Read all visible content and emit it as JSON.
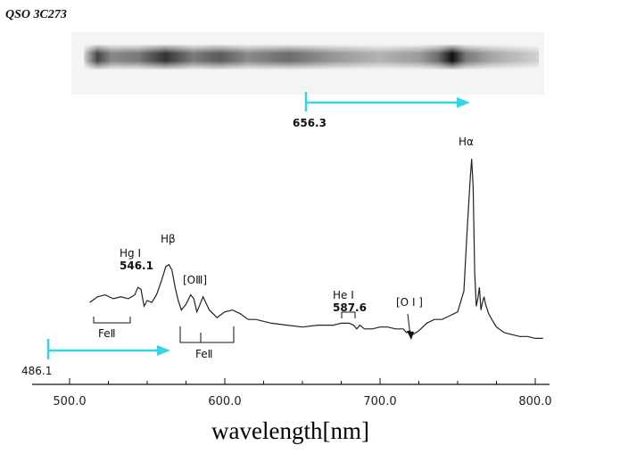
{
  "chart_data": {
    "type": "line",
    "title": "QSO 3C273",
    "xlabel": "wavelength[nm]",
    "ylabel": "",
    "xlim": [
      485,
      812
    ],
    "xticks": [
      "500.0",
      "600.0",
      "700.0",
      "800.0"
    ],
    "x_tick_values": [
      500,
      600,
      700,
      800
    ],
    "ylim": [
      0,
      1
    ],
    "grid": false,
    "series": [
      {
        "x": [
          513,
          518,
          523,
          528,
          533,
          538,
          542,
          544,
          546,
          548,
          550,
          553,
          556,
          559,
          562,
          564,
          566,
          568,
          570,
          572,
          575,
          578,
          580,
          582,
          584,
          586,
          590,
          595,
          600,
          605,
          610,
          615,
          620,
          630,
          640,
          650,
          660,
          670,
          675,
          680,
          683,
          685,
          687,
          690,
          695,
          700,
          705,
          710,
          715,
          717,
          719,
          721,
          725,
          730,
          735,
          740,
          745,
          750,
          754,
          756,
          758,
          759,
          760,
          761,
          762,
          763,
          764,
          765,
          766,
          767,
          768,
          770,
          772,
          775,
          780,
          785,
          790,
          795,
          800,
          805
        ],
        "y": [
          0.24,
          0.27,
          0.28,
          0.26,
          0.27,
          0.26,
          0.28,
          0.32,
          0.31,
          0.22,
          0.25,
          0.24,
          0.28,
          0.35,
          0.43,
          0.44,
          0.41,
          0.32,
          0.25,
          0.2,
          0.23,
          0.28,
          0.26,
          0.19,
          0.23,
          0.27,
          0.2,
          0.16,
          0.19,
          0.2,
          0.18,
          0.15,
          0.15,
          0.13,
          0.12,
          0.11,
          0.12,
          0.12,
          0.13,
          0.13,
          0.12,
          0.1,
          0.12,
          0.1,
          0.1,
          0.11,
          0.11,
          0.1,
          0.1,
          0.08,
          0.09,
          0.07,
          0.09,
          0.13,
          0.15,
          0.15,
          0.17,
          0.19,
          0.3,
          0.6,
          0.88,
          1.0,
          0.85,
          0.4,
          0.22,
          0.26,
          0.32,
          0.2,
          0.24,
          0.27,
          0.23,
          0.18,
          0.15,
          0.11,
          0.08,
          0.07,
          0.06,
          0.06,
          0.05,
          0.05
        ]
      }
    ],
    "annotations": [
      {
        "label": "Hg I",
        "sublabel": "546.1",
        "x": 546
      },
      {
        "label": "Hβ",
        "x": 563
      },
      {
        "label": "[OⅢ]",
        "x": 583
      },
      {
        "label": "FeⅡ",
        "x": 526
      },
      {
        "label": "FeⅡ",
        "x": 586
      },
      {
        "label": "He I",
        "sublabel": "587.6",
        "x": 684
      },
      {
        "label": "[O I ]",
        "x": 720
      },
      {
        "label": "Hα",
        "x": 760
      }
    ]
  },
  "spectrum_strip": {
    "marker_656": "656.3",
    "marker_486": "486.1",
    "arrow_color": "#33d6e6"
  }
}
